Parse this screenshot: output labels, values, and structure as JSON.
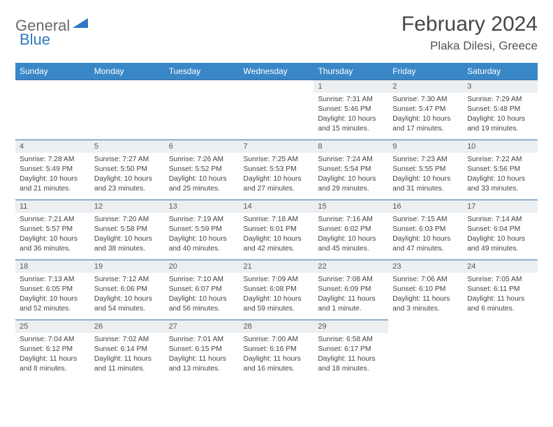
{
  "brand": {
    "part1": "General",
    "part2": "Blue"
  },
  "title": "February 2024",
  "location": "Plaka Dilesi, Greece",
  "colors": {
    "header_bg": "#3a87c8",
    "header_text": "#ffffff",
    "daynum_bg": "#eceff1",
    "border": "#3a6fa5",
    "logo_gray": "#6a6a6a",
    "logo_blue": "#2f78c2"
  },
  "weekdays": [
    "Sunday",
    "Monday",
    "Tuesday",
    "Wednesday",
    "Thursday",
    "Friday",
    "Saturday"
  ],
  "weeks": [
    [
      null,
      null,
      null,
      null,
      {
        "n": "1",
        "sr": "7:31 AM",
        "ss": "5:46 PM",
        "dl": "10 hours and 15 minutes."
      },
      {
        "n": "2",
        "sr": "7:30 AM",
        "ss": "5:47 PM",
        "dl": "10 hours and 17 minutes."
      },
      {
        "n": "3",
        "sr": "7:29 AM",
        "ss": "5:48 PM",
        "dl": "10 hours and 19 minutes."
      }
    ],
    [
      {
        "n": "4",
        "sr": "7:28 AM",
        "ss": "5:49 PM",
        "dl": "10 hours and 21 minutes."
      },
      {
        "n": "5",
        "sr": "7:27 AM",
        "ss": "5:50 PM",
        "dl": "10 hours and 23 minutes."
      },
      {
        "n": "6",
        "sr": "7:26 AM",
        "ss": "5:52 PM",
        "dl": "10 hours and 25 minutes."
      },
      {
        "n": "7",
        "sr": "7:25 AM",
        "ss": "5:53 PM",
        "dl": "10 hours and 27 minutes."
      },
      {
        "n": "8",
        "sr": "7:24 AM",
        "ss": "5:54 PM",
        "dl": "10 hours and 29 minutes."
      },
      {
        "n": "9",
        "sr": "7:23 AM",
        "ss": "5:55 PM",
        "dl": "10 hours and 31 minutes."
      },
      {
        "n": "10",
        "sr": "7:22 AM",
        "ss": "5:56 PM",
        "dl": "10 hours and 33 minutes."
      }
    ],
    [
      {
        "n": "11",
        "sr": "7:21 AM",
        "ss": "5:57 PM",
        "dl": "10 hours and 36 minutes."
      },
      {
        "n": "12",
        "sr": "7:20 AM",
        "ss": "5:58 PM",
        "dl": "10 hours and 38 minutes."
      },
      {
        "n": "13",
        "sr": "7:19 AM",
        "ss": "5:59 PM",
        "dl": "10 hours and 40 minutes."
      },
      {
        "n": "14",
        "sr": "7:18 AM",
        "ss": "6:01 PM",
        "dl": "10 hours and 42 minutes."
      },
      {
        "n": "15",
        "sr": "7:16 AM",
        "ss": "6:02 PM",
        "dl": "10 hours and 45 minutes."
      },
      {
        "n": "16",
        "sr": "7:15 AM",
        "ss": "6:03 PM",
        "dl": "10 hours and 47 minutes."
      },
      {
        "n": "17",
        "sr": "7:14 AM",
        "ss": "6:04 PM",
        "dl": "10 hours and 49 minutes."
      }
    ],
    [
      {
        "n": "18",
        "sr": "7:13 AM",
        "ss": "6:05 PM",
        "dl": "10 hours and 52 minutes."
      },
      {
        "n": "19",
        "sr": "7:12 AM",
        "ss": "6:06 PM",
        "dl": "10 hours and 54 minutes."
      },
      {
        "n": "20",
        "sr": "7:10 AM",
        "ss": "6:07 PM",
        "dl": "10 hours and 56 minutes."
      },
      {
        "n": "21",
        "sr": "7:09 AM",
        "ss": "6:08 PM",
        "dl": "10 hours and 59 minutes."
      },
      {
        "n": "22",
        "sr": "7:08 AM",
        "ss": "6:09 PM",
        "dl": "11 hours and 1 minute."
      },
      {
        "n": "23",
        "sr": "7:06 AM",
        "ss": "6:10 PM",
        "dl": "11 hours and 3 minutes."
      },
      {
        "n": "24",
        "sr": "7:05 AM",
        "ss": "6:11 PM",
        "dl": "11 hours and 6 minutes."
      }
    ],
    [
      {
        "n": "25",
        "sr": "7:04 AM",
        "ss": "6:12 PM",
        "dl": "11 hours and 8 minutes."
      },
      {
        "n": "26",
        "sr": "7:02 AM",
        "ss": "6:14 PM",
        "dl": "11 hours and 11 minutes."
      },
      {
        "n": "27",
        "sr": "7:01 AM",
        "ss": "6:15 PM",
        "dl": "11 hours and 13 minutes."
      },
      {
        "n": "28",
        "sr": "7:00 AM",
        "ss": "6:16 PM",
        "dl": "11 hours and 16 minutes."
      },
      {
        "n": "29",
        "sr": "6:58 AM",
        "ss": "6:17 PM",
        "dl": "11 hours and 18 minutes."
      },
      null,
      null
    ]
  ],
  "labels": {
    "sunrise": "Sunrise:",
    "sunset": "Sunset:",
    "daylight": "Daylight:"
  }
}
